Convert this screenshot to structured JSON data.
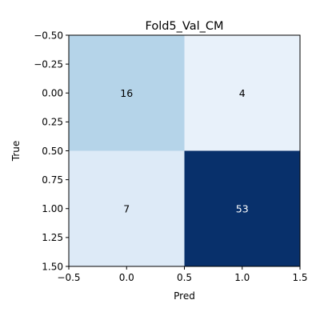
{
  "chart_data": {
    "type": "heatmap",
    "title": "Fold5_Val_CM",
    "xlabel": "Pred",
    "ylabel": "True",
    "matrix": [
      [
        16,
        4
      ],
      [
        7,
        53
      ]
    ],
    "color_scale": {
      "min": 0,
      "max": 53,
      "colormap": "Blues"
    },
    "xlim": [
      -0.5,
      1.5
    ],
    "ylim": [
      1.5,
      -0.5
    ],
    "xticks": [
      "−0.5",
      "0.0",
      "0.5",
      "1.0",
      "1.5"
    ],
    "yticks": [
      "−0.50",
      "−0.25",
      "0.00",
      "0.25",
      "0.50",
      "0.75",
      "1.00",
      "1.25",
      "1.50"
    ],
    "grid": false
  }
}
